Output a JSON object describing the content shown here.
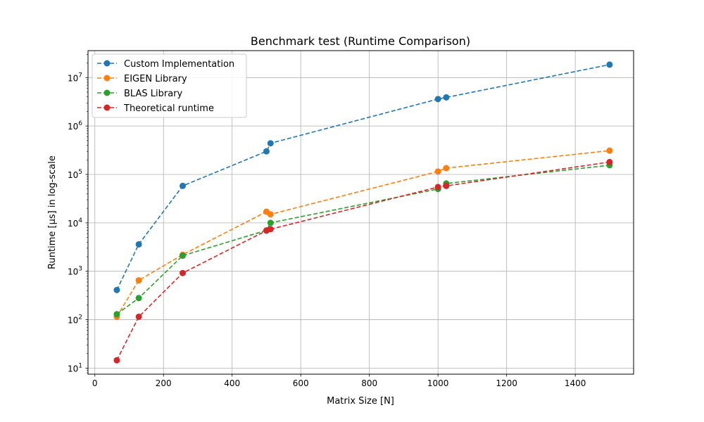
{
  "chart_data": {
    "type": "line",
    "title": "Benchmark test (Runtime Comparison)",
    "xlabel": "Matrix Size [N]",
    "ylabel": "Runtime [μs] in log-scale",
    "xlim": [
      -20,
      1570
    ],
    "ylim": [
      7.5,
      36000000
    ],
    "yscale": "log",
    "grid": true,
    "legend_position": "top-left",
    "x_ticks": [
      0,
      200,
      400,
      600,
      800,
      1000,
      1200,
      1400
    ],
    "y_ticks": [
      {
        "value": 10,
        "base": "10",
        "exp": "1"
      },
      {
        "value": 100,
        "base": "10",
        "exp": "2"
      },
      {
        "value": 1000,
        "base": "10",
        "exp": "3"
      },
      {
        "value": 10000,
        "base": "10",
        "exp": "4"
      },
      {
        "value": 100000,
        "base": "10",
        "exp": "5"
      },
      {
        "value": 1000000,
        "base": "10",
        "exp": "6"
      },
      {
        "value": 10000000,
        "base": "10",
        "exp": "7"
      }
    ],
    "series": [
      {
        "name": "Custom Implementation",
        "color": "#1f77b4",
        "x": [
          64,
          128,
          256,
          500,
          512,
          1000,
          1024,
          1500
        ],
        "y": [
          410,
          3600,
          58000,
          300000,
          440000,
          3600000,
          3900000,
          18500000
        ]
      },
      {
        "name": "EIGEN Library",
        "color": "#ff7f0e",
        "x": [
          64,
          128,
          256,
          500,
          512,
          1000,
          1024,
          1500
        ],
        "y": [
          115,
          650,
          2200,
          17000,
          15000,
          115000,
          135000,
          310000
        ]
      },
      {
        "name": "BLAS Library",
        "color": "#2ca02c",
        "x": [
          64,
          128,
          256,
          500,
          512,
          1000,
          1024,
          1500
        ],
        "y": [
          130,
          280,
          2100,
          7000,
          10000,
          50000,
          65000,
          155000
        ]
      },
      {
        "name": "Theoretical runtime",
        "color": "#d62728",
        "x": [
          64,
          128,
          256,
          500,
          512,
          1000,
          1024,
          1500
        ],
        "y": [
          14.5,
          115,
          920,
          6900,
          7400,
          55000,
          58000,
          180000
        ]
      }
    ]
  }
}
